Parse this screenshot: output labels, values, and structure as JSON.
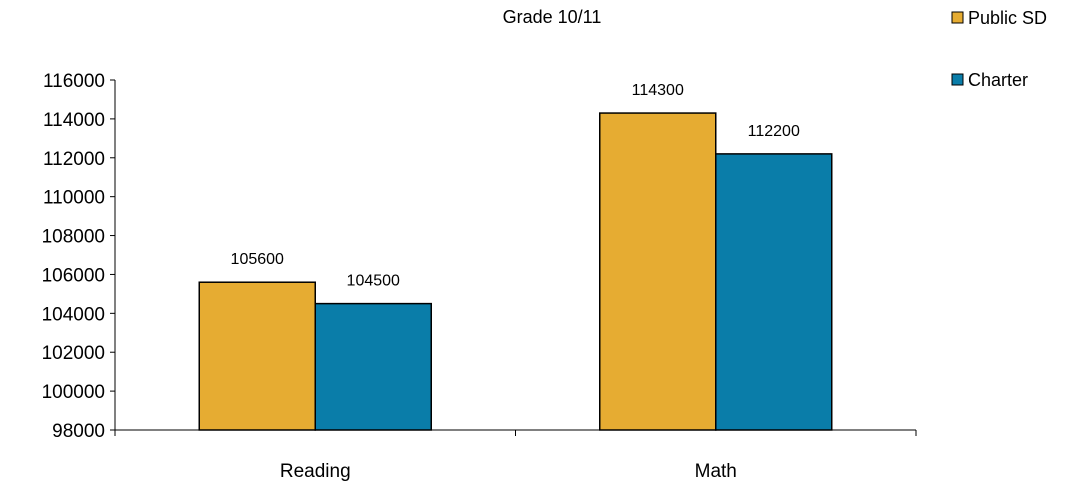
{
  "chart_data": {
    "type": "bar",
    "title": "Grade 10/11",
    "categories": [
      "Reading",
      "Math"
    ],
    "series": [
      {
        "name": "Public SD",
        "values": [
          105600,
          114300
        ],
        "color": "#E6AC32"
      },
      {
        "name": "Charter",
        "values": [
          104500,
          112200
        ],
        "color": "#0A7DA9"
      }
    ],
    "ylim": [
      98000,
      116000
    ],
    "yticks": [
      "116000",
      "114000",
      "112000",
      "110000",
      "108000",
      "106000",
      "104000",
      "102000",
      "100000",
      "98000"
    ],
    "data_labels": [
      [
        "105600",
        "114300"
      ],
      [
        "104500",
        "112200"
      ]
    ],
    "grid": false,
    "legend_position": "top-right"
  }
}
